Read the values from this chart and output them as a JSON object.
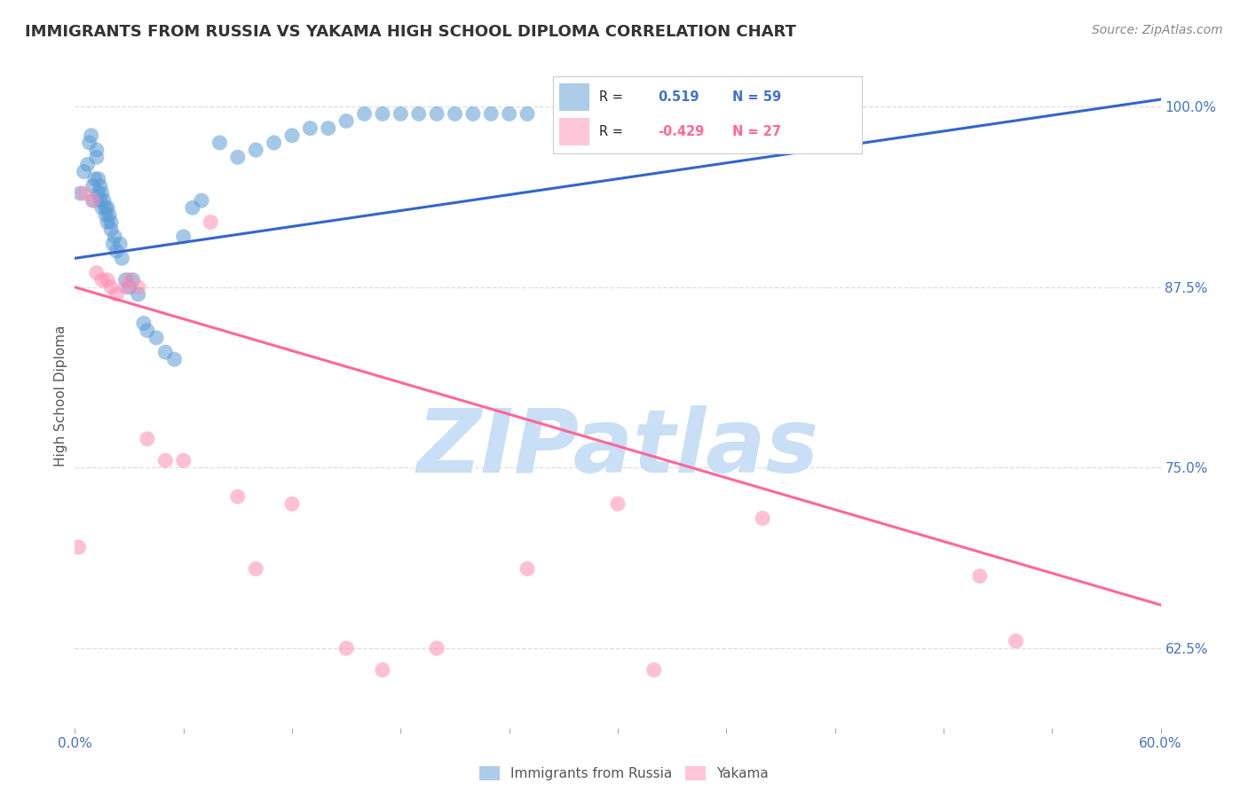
{
  "title": "IMMIGRANTS FROM RUSSIA VS YAKAMA HIGH SCHOOL DIPLOMA CORRELATION CHART",
  "source": "Source: ZipAtlas.com",
  "ylabel": "High School Diploma",
  "yticks_labels": [
    "62.5%",
    "75.0%",
    "87.5%",
    "100.0%"
  ],
  "ytick_vals": [
    62.5,
    75.0,
    87.5,
    100.0
  ],
  "xlim": [
    0.0,
    60.0
  ],
  "ylim": [
    57.0,
    103.0
  ],
  "watermark": "ZIPatlas",
  "legend_blue_r": "0.519",
  "legend_blue_n": "59",
  "legend_pink_r": "-0.429",
  "legend_pink_n": "27",
  "blue_scatter_x": [
    0.3,
    0.5,
    0.7,
    0.8,
    0.9,
    1.0,
    1.0,
    1.1,
    1.2,
    1.2,
    1.3,
    1.3,
    1.4,
    1.4,
    1.5,
    1.5,
    1.6,
    1.7,
    1.7,
    1.8,
    1.8,
    1.9,
    2.0,
    2.0,
    2.1,
    2.2,
    2.3,
    2.5,
    2.6,
    2.8,
    3.0,
    3.2,
    3.5,
    3.8,
    4.0,
    4.5,
    5.0,
    5.5,
    6.0,
    6.5,
    7.0,
    8.0,
    9.0,
    10.0,
    11.0,
    12.0,
    13.0,
    14.0,
    15.0,
    16.0,
    17.0,
    18.0,
    19.0,
    20.0,
    21.0,
    22.0,
    23.0,
    24.0,
    25.0
  ],
  "blue_scatter_y": [
    94.0,
    95.5,
    96.0,
    97.5,
    98.0,
    93.5,
    94.5,
    95.0,
    96.5,
    97.0,
    94.0,
    95.0,
    93.5,
    94.5,
    93.0,
    94.0,
    93.5,
    92.5,
    93.0,
    92.0,
    93.0,
    92.5,
    91.5,
    92.0,
    90.5,
    91.0,
    90.0,
    90.5,
    89.5,
    88.0,
    87.5,
    88.0,
    87.0,
    85.0,
    84.5,
    84.0,
    83.0,
    82.5,
    91.0,
    93.0,
    93.5,
    97.5,
    96.5,
    97.0,
    97.5,
    98.0,
    98.5,
    98.5,
    99.0,
    99.5,
    99.5,
    99.5,
    99.5,
    99.5,
    99.5,
    99.5,
    99.5,
    99.5,
    99.5
  ],
  "pink_scatter_x": [
    0.2,
    0.5,
    1.0,
    1.2,
    1.5,
    1.8,
    2.0,
    2.3,
    2.8,
    3.0,
    3.5,
    4.0,
    5.0,
    6.0,
    7.5,
    9.0,
    10.0,
    12.0,
    15.0,
    17.0,
    20.0,
    25.0,
    30.0,
    32.0,
    38.0,
    50.0,
    52.0
  ],
  "pink_scatter_y": [
    69.5,
    94.0,
    93.5,
    88.5,
    88.0,
    88.0,
    87.5,
    87.0,
    87.5,
    88.0,
    87.5,
    77.0,
    75.5,
    75.5,
    92.0,
    73.0,
    68.0,
    72.5,
    62.5,
    61.0,
    62.5,
    68.0,
    72.5,
    61.0,
    71.5,
    67.5,
    63.0
  ],
  "blue_line_x": [
    0.0,
    60.0
  ],
  "blue_line_y": [
    89.5,
    100.5
  ],
  "pink_line_x": [
    0.0,
    60.0
  ],
  "pink_line_y": [
    87.5,
    65.5
  ],
  "blue_color": "#5b9bd5",
  "pink_color": "#ff8cb3",
  "blue_line_color": "#3366cc",
  "pink_line_color": "#ff6699",
  "background_color": "#ffffff",
  "grid_color": "#dddddd",
  "title_color": "#333333",
  "right_tick_color": "#4472c4",
  "watermark_color": "#c8dff5",
  "xtick_positions": [
    0.0,
    6.0,
    12.0,
    18.0,
    24.0,
    30.0,
    36.0,
    42.0,
    48.0,
    54.0,
    60.0
  ]
}
